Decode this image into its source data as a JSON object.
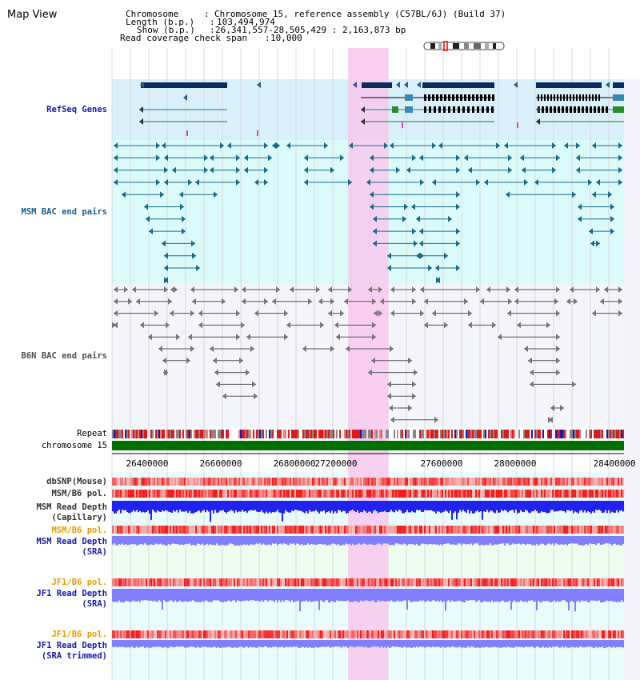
{
  "title": "Map View",
  "info": [
    {
      "key": "Chromosome",
      "value": "Chromosome 15, reference assembly (C57BL/6J) (Build 37)"
    },
    {
      "key": "Length (b.p.)",
      "value": "103,494,974"
    },
    {
      "key": "Show (b.p.)",
      "value": "26,341,557-28,505,429 : 2,163,873 bp"
    },
    {
      "key": "Read coverage check span",
      "value": "10,000"
    }
  ],
  "tracks": {
    "refseq": "RefSeq Genes",
    "msm_bac": "MSM BAC end pairs",
    "b6n_bac": "B6N BAC end pairs",
    "repeat": "Repeat",
    "chromosome": "chromosome 15",
    "dbsnp": "dbSNP(Mouse)",
    "msm_b6_pol": "MSM/B6 pol.",
    "msm_depth_cap_1": "MSM Read Depth",
    "msm_depth_cap_2": "(Capillary)",
    "msm_b6_pol_2": "MSM/B6 pol.",
    "msm_depth_sra_1": "MSM Read Depth",
    "msm_depth_sra_2": "(SRA)",
    "jf1_b6_pol": "JF1/B6 pol.",
    "jf1_depth_sra_1": "JF1 Read Depth",
    "jf1_depth_sra_2": "(SRA)",
    "jf1_b6_pol_2": "JF1/B6 pol.",
    "jf1_depth_trim_1": "JF1 Read Depth",
    "jf1_depth_trim_2": "(SRA trimmed)"
  },
  "axis": {
    "ticks": [
      "26400000",
      "26600000",
      "26800000",
      "27200000",
      "27600000",
      "28000000",
      "28400000"
    ]
  },
  "colors": {
    "refseq_label": "#1a1aaa",
    "msm_label": "#1a5e8a",
    "b6n_label": "#505050",
    "orange_label": "#e89a00",
    "blue_label": "#1a1aaa",
    "highlight": "#f8c8ee",
    "gene_bg": "#d9effa",
    "bac_bg": "#dbfafa",
    "pale_bg": "#e9fbfb",
    "chromosome": "#007000",
    "depth_dark": "#2222ee",
    "depth_light": "#8080ff"
  }
}
